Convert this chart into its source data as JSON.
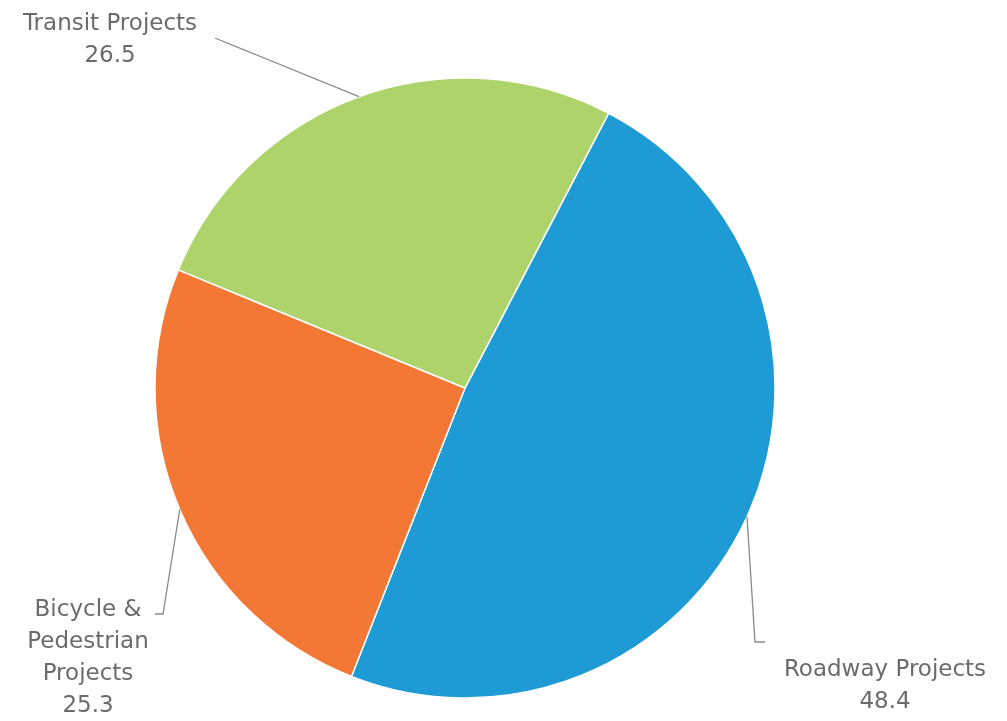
{
  "chart_data": {
    "type": "pie",
    "categories": [
      "Roadway Projects",
      "Bicycle & Pedestrian Projects",
      "Transit Projects"
    ],
    "values": [
      48.4,
      25.3,
      26.5
    ],
    "colors": [
      "#1e9bd4",
      "#f37735",
      "#afd36b"
    ],
    "data_labels": true,
    "legend": false
  }
}
